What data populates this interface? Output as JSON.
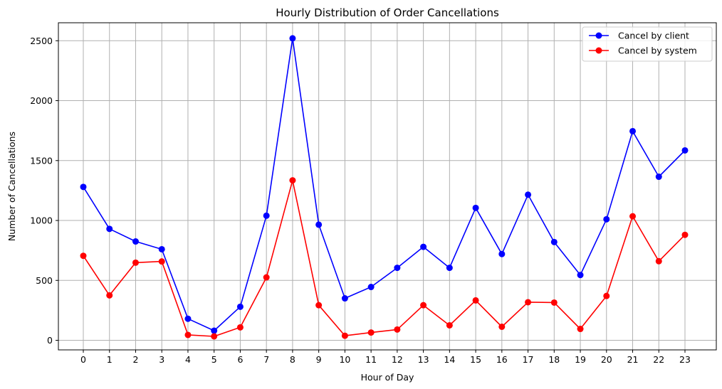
{
  "chart_data": {
    "type": "line",
    "title": "Hourly Distribution of Order Cancellations",
    "xlabel": "Hour of Day",
    "ylabel": "Number of Cancellations",
    "x": [
      "0",
      "1",
      "2",
      "3",
      "4",
      "5",
      "6",
      "7",
      "8",
      "9",
      "10",
      "11",
      "12",
      "13",
      "14",
      "15",
      "16",
      "17",
      "18",
      "19",
      "20",
      "21",
      "22",
      "23"
    ],
    "ylim": [
      -80,
      2650
    ],
    "yticks": [
      "0",
      "500",
      "1000",
      "1500",
      "2000",
      "2500"
    ],
    "grid": true,
    "legend": "top-right",
    "series": [
      {
        "name": "Cancel by client",
        "color": "#0000ff",
        "values": [
          1280,
          930,
          825,
          760,
          180,
          80,
          280,
          1040,
          2520,
          965,
          350,
          445,
          605,
          780,
          605,
          1105,
          720,
          1215,
          820,
          545,
          1010,
          1745,
          1365,
          1585
        ]
      },
      {
        "name": "Cancel by system",
        "color": "#ff0000",
        "values": [
          705,
          375,
          648,
          658,
          45,
          33,
          108,
          525,
          1335,
          293,
          38,
          65,
          90,
          293,
          125,
          333,
          113,
          318,
          315,
          95,
          370,
          1035,
          660,
          880
        ]
      }
    ]
  }
}
